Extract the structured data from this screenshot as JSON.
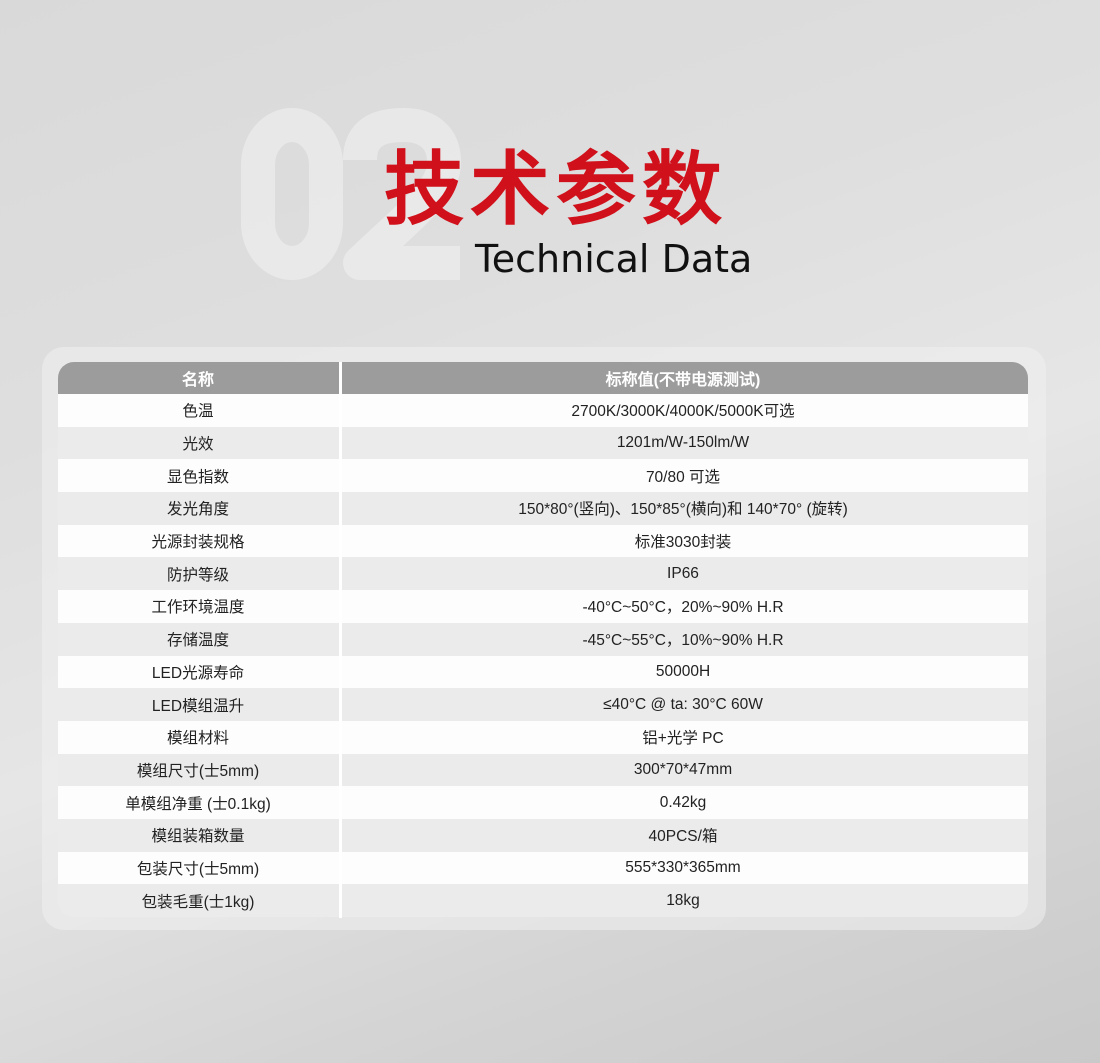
{
  "header": {
    "watermark": "02",
    "title_cn": "技术参数",
    "title_en": "Technical Data",
    "accent_color": "#d0111b"
  },
  "table": {
    "columns": [
      "名称",
      "标称值(不带电源测试)"
    ],
    "rows": [
      [
        "色温",
        "2700K/3000K/4000K/5000K可选"
      ],
      [
        "光效",
        "1201m/W-150lm/W"
      ],
      [
        "显色指数",
        "70/80 可选"
      ],
      [
        "发光角度",
        "150*80°(竖向)、150*85°(横向)和 140*70° (旋转)"
      ],
      [
        "光源封装规格",
        "标准3030封装"
      ],
      [
        "防护等级",
        "IP66"
      ],
      [
        "工作环境温度",
        "-40°C~50°C，20%~90% H.R"
      ],
      [
        "存储温度",
        "-45°C~55°C，10%~90% H.R"
      ],
      [
        "LED光源寿命",
        "50000H"
      ],
      [
        "LED模组温升",
        "≤40°C @ ta: 30°C 60W"
      ],
      [
        "模组材料",
        "铝+光学 PC"
      ],
      [
        "模组尺寸(士5mm)",
        "300*70*47mm"
      ],
      [
        "单模组净重 (士0.1kg)",
        "0.42kg"
      ],
      [
        "模组装箱数量",
        "40PCS/箱"
      ],
      [
        "包装尺寸(士5mm)",
        "555*330*365mm"
      ],
      [
        "包装毛重(士1kg)",
        "18kg"
      ]
    ]
  }
}
